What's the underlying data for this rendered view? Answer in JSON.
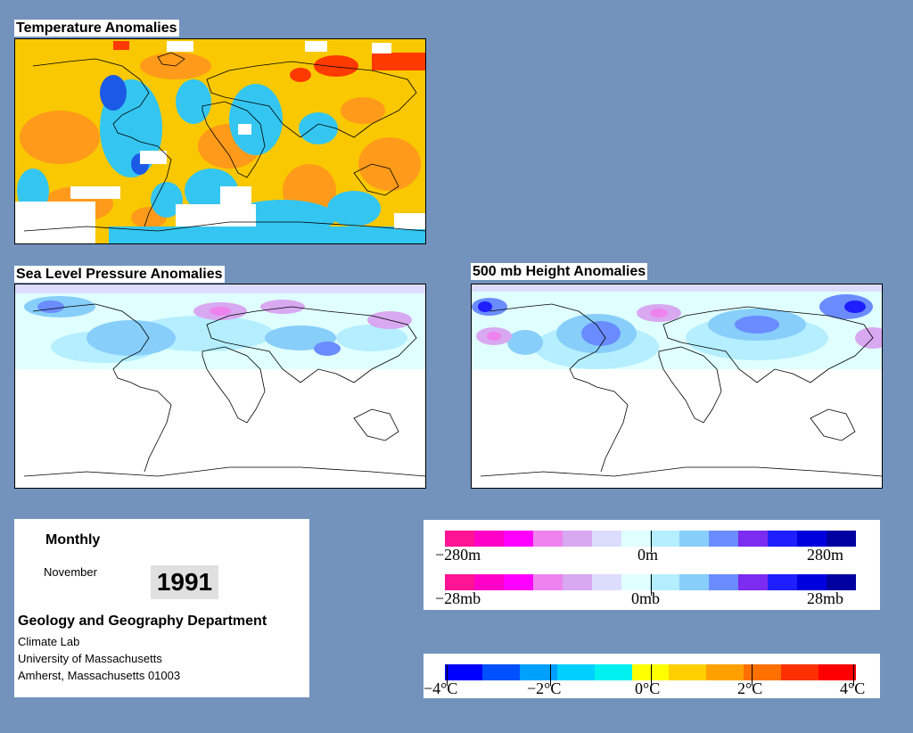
{
  "maps": {
    "temperature": {
      "title": "Temperature Anomalies"
    },
    "slp": {
      "title": "Sea Level Pressure Anomalies"
    },
    "h500": {
      "title": "500 mb Height Anomalies"
    }
  },
  "info": {
    "period": "Monthly",
    "month": "November",
    "year": "1991",
    "department": "Geology and Geography Department",
    "lab": "Climate Lab",
    "university": "University of Massachusetts",
    "address": "Amherst, Massachusetts 01003"
  },
  "legend_height": {
    "labels": [
      "−280m",
      "0m",
      "280m"
    ],
    "colors": [
      "#ff1493",
      "#ff00c8",
      "#ff00ff",
      "#ee82ee",
      "#d8a8f0",
      "#dcdcff",
      "#e0ffff",
      "#b4eeff",
      "#87cefa",
      "#6a8cff",
      "#7b2cf0",
      "#1e1eff",
      "#0000dd",
      "#0000a0"
    ]
  },
  "legend_pressure": {
    "labels": [
      "−28mb",
      "0mb",
      "28mb"
    ],
    "colors": [
      "#ff1493",
      "#ff00c8",
      "#ff00ff",
      "#ee82ee",
      "#d8a8f0",
      "#dcdcff",
      "#e0ffff",
      "#b4eeff",
      "#87cefa",
      "#6a8cff",
      "#7b2cf0",
      "#1e1eff",
      "#0000dd",
      "#0000a0"
    ]
  },
  "legend_temperature": {
    "labels": [
      "−4°C",
      "−2°C",
      "0°C",
      "2°C",
      "4°C"
    ],
    "colors": [
      "#0000ff",
      "#0050ff",
      "#00a0ff",
      "#00d0ff",
      "#00f0f0",
      "#ffff00",
      "#ffd000",
      "#ffa000",
      "#ff7000",
      "#ff3000",
      "#ff0000"
    ]
  }
}
